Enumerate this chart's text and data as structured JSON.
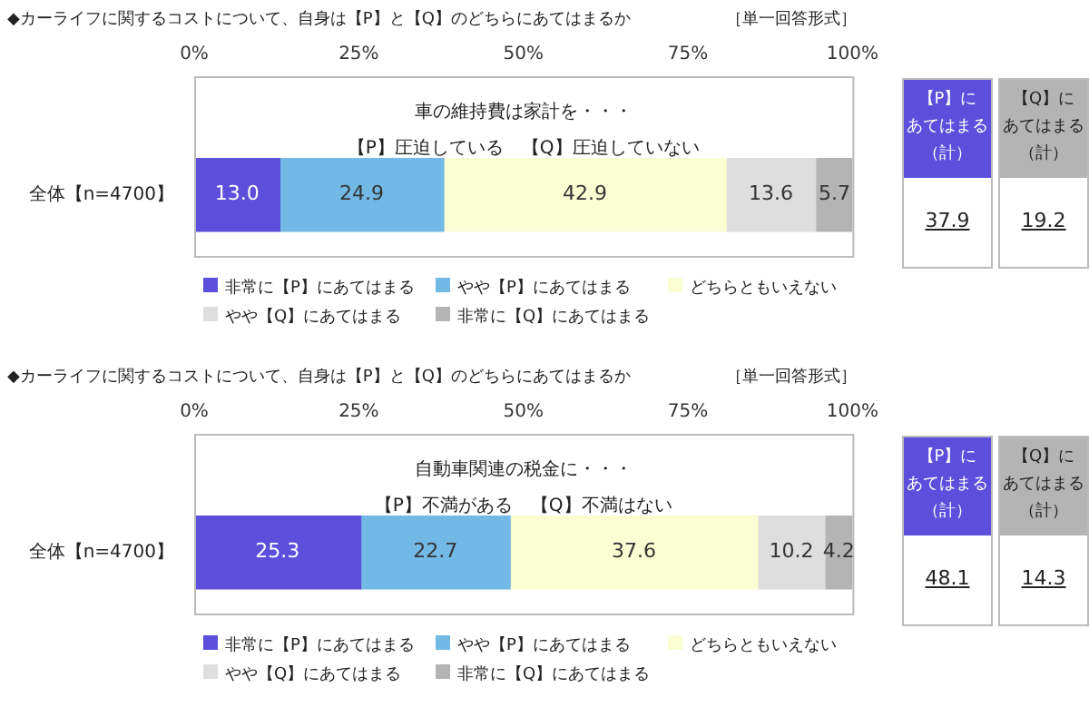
{
  "chart_data": [
    {
      "type": "bar",
      "orientation": "horizontal",
      "stacked": true,
      "title": "◆カーライフに関するコストについて、自身は【P】と【Q】のどちらにあてはまるか",
      "subtitle": "［単一回答形式］",
      "categories": [
        "全体【n=4700】"
      ],
      "series": [
        {
          "name": "非常に【P】にあてはまる",
          "color": "#5b4fdc",
          "values": [
            13.0
          ]
        },
        {
          "name": "やや【P】にあてはまる",
          "color": "#72b9e6",
          "values": [
            24.9
          ]
        },
        {
          "name": "どちらともいえない",
          "color": "#fbfdd2",
          "values": [
            42.9
          ]
        },
        {
          "name": "やや【Q】にあてはまる",
          "color": "#dedede",
          "values": [
            13.6
          ]
        },
        {
          "name": "非常に【Q】にあてはまる",
          "color": "#b4b4b4",
          "values": [
            5.7
          ]
        }
      ],
      "xlim": [
        0,
        100
      ],
      "xticks": [
        {
          "value": 0,
          "label": "0%"
        },
        {
          "value": 25,
          "label": "25%"
        },
        {
          "value": 50,
          "label": "50%"
        },
        {
          "value": 75,
          "label": "75%"
        },
        {
          "value": 100,
          "label": "100%"
        }
      ],
      "value_labels": [
        [
          "13.0"
        ],
        [
          "24.9"
        ],
        [
          "42.9"
        ],
        [
          "13.6"
        ],
        [
          "5.7"
        ]
      ],
      "legend": "bottom",
      "grid": false,
      "annotations": [
        "車の維持費は家計を・・・",
        "【P】圧迫している　【Q】圧迫していない",
        "【P】に",
        "あてはまる",
        "（計）",
        "37.9",
        "【Q】に",
        "あてはまる",
        "（計）",
        "19.2"
      ]
    },
    {
      "type": "bar",
      "orientation": "horizontal",
      "stacked": true,
      "title": "◆カーライフに関するコストについて、自身は【P】と【Q】のどちらにあてはまるか",
      "subtitle": "［単一回答形式］",
      "categories": [
        "全体【n=4700】"
      ],
      "series": [
        {
          "name": "非常に【P】にあてはまる",
          "color": "#5b4fdc",
          "values": [
            25.3
          ]
        },
        {
          "name": "やや【P】にあてはまる",
          "color": "#72b9e6",
          "values": [
            22.7
          ]
        },
        {
          "name": "どちらともいえない",
          "color": "#fbfdd2",
          "values": [
            37.6
          ]
        },
        {
          "name": "やや【Q】にあてはまる",
          "color": "#dedede",
          "values": [
            10.2
          ]
        },
        {
          "name": "非常に【Q】にあてはまる",
          "color": "#b4b4b4",
          "values": [
            4.2
          ]
        }
      ],
      "xlim": [
        0,
        100
      ],
      "xticks": [
        {
          "value": 0,
          "label": "0%"
        },
        {
          "value": 25,
          "label": "25%"
        },
        {
          "value": 50,
          "label": "50%"
        },
        {
          "value": 75,
          "label": "75%"
        },
        {
          "value": 100,
          "label": "100%"
        }
      ],
      "value_labels": [
        [
          "25.3"
        ],
        [
          "22.7"
        ],
        [
          "37.6"
        ],
        [
          "10.2"
        ],
        [
          "4.2"
        ]
      ],
      "legend": "bottom",
      "grid": false,
      "annotations": [
        "自動車関連の税金に・・・",
        "【P】不満がある　【Q】不満はない",
        "【P】に",
        "あてはまる",
        "（計）",
        "48.1",
        "【Q】に",
        "あてはまる",
        "（計）",
        "14.3"
      ]
    }
  ]
}
